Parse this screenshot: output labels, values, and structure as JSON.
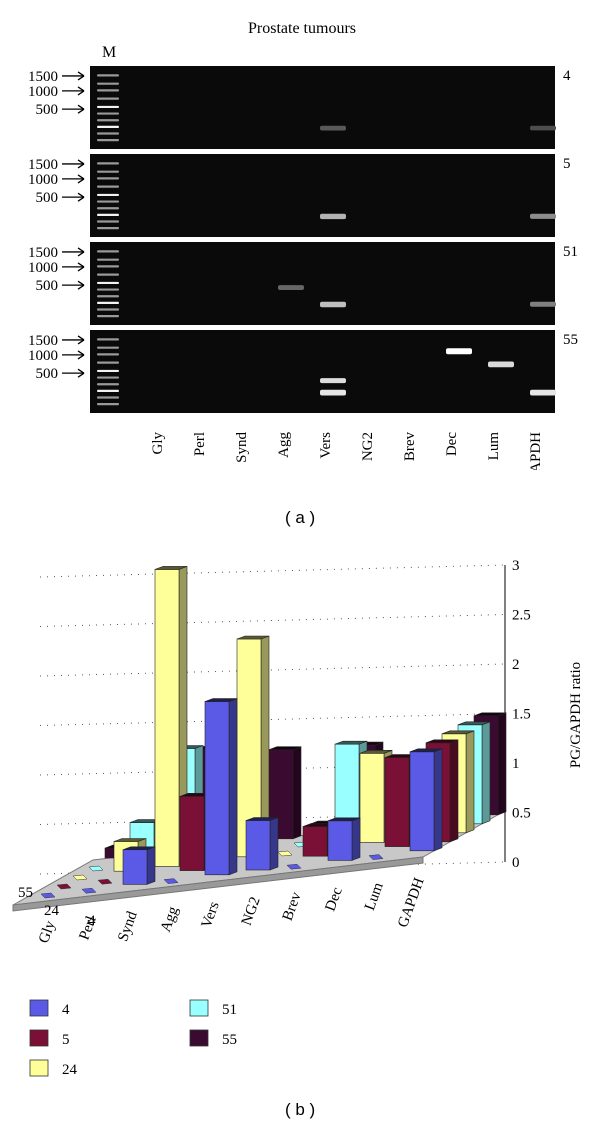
{
  "panel_a": {
    "title": "Prostate tumours",
    "marker_label": "M",
    "caption": "( a )",
    "size_markers": [
      "1500",
      "1000",
      "500"
    ],
    "lanes": [
      "Gly",
      "Perl",
      "Synd",
      "Agg",
      "Vers",
      "NG2",
      "Brev",
      "Dec",
      "Lum",
      "GAPDH"
    ],
    "gels": [
      {
        "sample": "4",
        "bands": [
          {
            "lane": "Vers",
            "level": 0.35
          },
          {
            "lane": "GAPDH",
            "level": 0.3
          }
        ]
      },
      {
        "sample": "5",
        "bands": [
          {
            "lane": "Vers",
            "level": 0.7
          },
          {
            "lane": "GAPDH",
            "level": 0.55
          }
        ]
      },
      {
        "sample": "51",
        "bands": [
          {
            "lane": "Agg",
            "level": 0.4
          },
          {
            "lane": "Vers",
            "level": 0.75
          },
          {
            "lane": "GAPDH",
            "level": 0.5
          }
        ]
      },
      {
        "sample": "55",
        "bands": [
          {
            "lane": "Vers",
            "level": 0.9
          },
          {
            "lane": "Dec",
            "level": 1.0
          },
          {
            "lane": "Lum",
            "level": 0.85
          },
          {
            "lane": "GAPDH",
            "level": 0.9
          }
        ]
      }
    ]
  },
  "panel_b": {
    "caption": "( b )"
  },
  "chart_data": {
    "type": "bar",
    "title": "",
    "zlabel": "PG/GAPDH ratio",
    "zlim": [
      0,
      3
    ],
    "z_ticks": [
      "0",
      "0.5",
      "1",
      "1.5",
      "2",
      "2.5",
      "3"
    ],
    "categories": [
      "Gly",
      "Perl",
      "Synd",
      "Agg",
      "Vers",
      "NG2",
      "Brev",
      "Dec",
      "Lum",
      "GAPDH"
    ],
    "series_axis_labels": [
      "55",
      "24",
      "4"
    ],
    "legend_position": "bottom-left",
    "series": [
      {
        "name": "4",
        "color": "#5a5ae6",
        "values": [
          0,
          0,
          0.35,
          0,
          1.75,
          0.5,
          0,
          0.4,
          0,
          1.0
        ]
      },
      {
        "name": "5",
        "color": "#7a1035",
        "values": [
          0,
          0,
          0,
          0.75,
          0,
          0,
          0.3,
          0,
          0.9,
          1.0
        ]
      },
      {
        "name": "24",
        "color": "#ffff99",
        "values": [
          0,
          0.3,
          3.0,
          0,
          2.2,
          0,
          0.2,
          0.9,
          0,
          1.0
        ]
      },
      {
        "name": "51",
        "color": "#99ffff",
        "values": [
          0,
          0.4,
          1.1,
          0,
          0,
          0,
          0.95,
          0,
          0,
          1.0
        ]
      },
      {
        "name": "55",
        "color": "#3a0a30",
        "values": [
          0.1,
          0.1,
          1.0,
          0,
          0.9,
          0.1,
          0.85,
          0,
          0,
          1.0
        ]
      }
    ]
  }
}
